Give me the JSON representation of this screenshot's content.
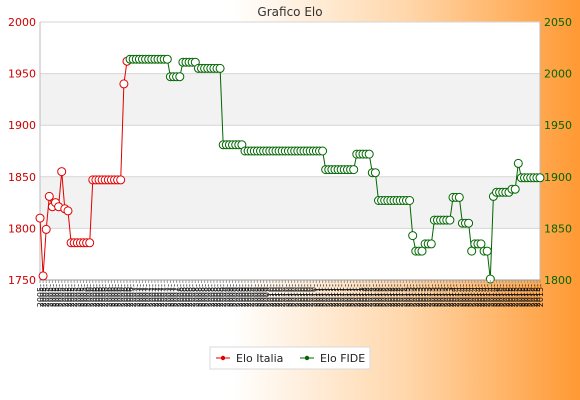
{
  "chart_data": {
    "type": "line",
    "title": "Grafico Elo",
    "y_left": {
      "min": 1750,
      "max": 2000,
      "ticks": [
        1750,
        1800,
        1850,
        1900,
        1950,
        2000
      ],
      "color": "#cc0000"
    },
    "y_right": {
      "min": 1800,
      "max": 2050,
      "ticks": [
        1800,
        1850,
        1900,
        1950,
        2000,
        2050
      ],
      "color": "#006600"
    },
    "grid": true,
    "legend_position": "bottom-center",
    "x_label_prefixes": [
      "2005-",
      "2006-",
      "2007-",
      "2008-",
      "2009-",
      "2010-",
      "2011-",
      "2012-",
      "2013-",
      "2014-",
      "2015-"
    ],
    "series": [
      {
        "name": "Elo Italia",
        "color": "#e00000",
        "axis": "left",
        "values": [
          1810,
          1754,
          1799,
          1831,
          1821,
          1825,
          1821,
          1855,
          1819,
          1817,
          1786,
          1786,
          1786,
          1786,
          1786,
          1786,
          1786,
          1847,
          1847,
          1847,
          1847,
          1847,
          1847,
          1847,
          1847,
          1847,
          1847,
          1940,
          1962
        ]
      },
      {
        "name": "Elo FIDE",
        "color": "#006600",
        "axis": "right",
        "values": [
          2014,
          2014,
          2014,
          2014,
          2014,
          2014,
          2014,
          2014,
          2014,
          2014,
          2014,
          2014,
          2014,
          1997,
          1997,
          1997,
          1997,
          2011,
          2011,
          2011,
          2011,
          2011,
          2005,
          2005,
          2005,
          2005,
          2005,
          2005,
          2005,
          2005,
          1931,
          1931,
          1931,
          1931,
          1931,
          1931,
          1931,
          1925,
          1925,
          1925,
          1925,
          1925,
          1925,
          1925,
          1925,
          1925,
          1925,
          1925,
          1925,
          1925,
          1925,
          1925,
          1925,
          1925,
          1925,
          1925,
          1925,
          1925,
          1925,
          1925,
          1925,
          1925,
          1925,
          1907,
          1907,
          1907,
          1907,
          1907,
          1907,
          1907,
          1907,
          1907,
          1907,
          1922,
          1922,
          1922,
          1922,
          1922,
          1904,
          1904,
          1877,
          1877,
          1877,
          1877,
          1877,
          1877,
          1877,
          1877,
          1877,
          1877,
          1877,
          1843,
          1828,
          1828,
          1828,
          1835,
          1835,
          1835,
          1858,
          1858,
          1858,
          1858,
          1858,
          1858,
          1880,
          1880,
          1880,
          1855,
          1855,
          1855,
          1828,
          1835,
          1835,
          1835,
          1828,
          1828,
          1801,
          1881,
          1885,
          1885,
          1885,
          1885,
          1885,
          1888,
          1888,
          1913,
          1899,
          1899,
          1899,
          1899,
          1899,
          1899,
          1899
        ]
      }
    ]
  }
}
